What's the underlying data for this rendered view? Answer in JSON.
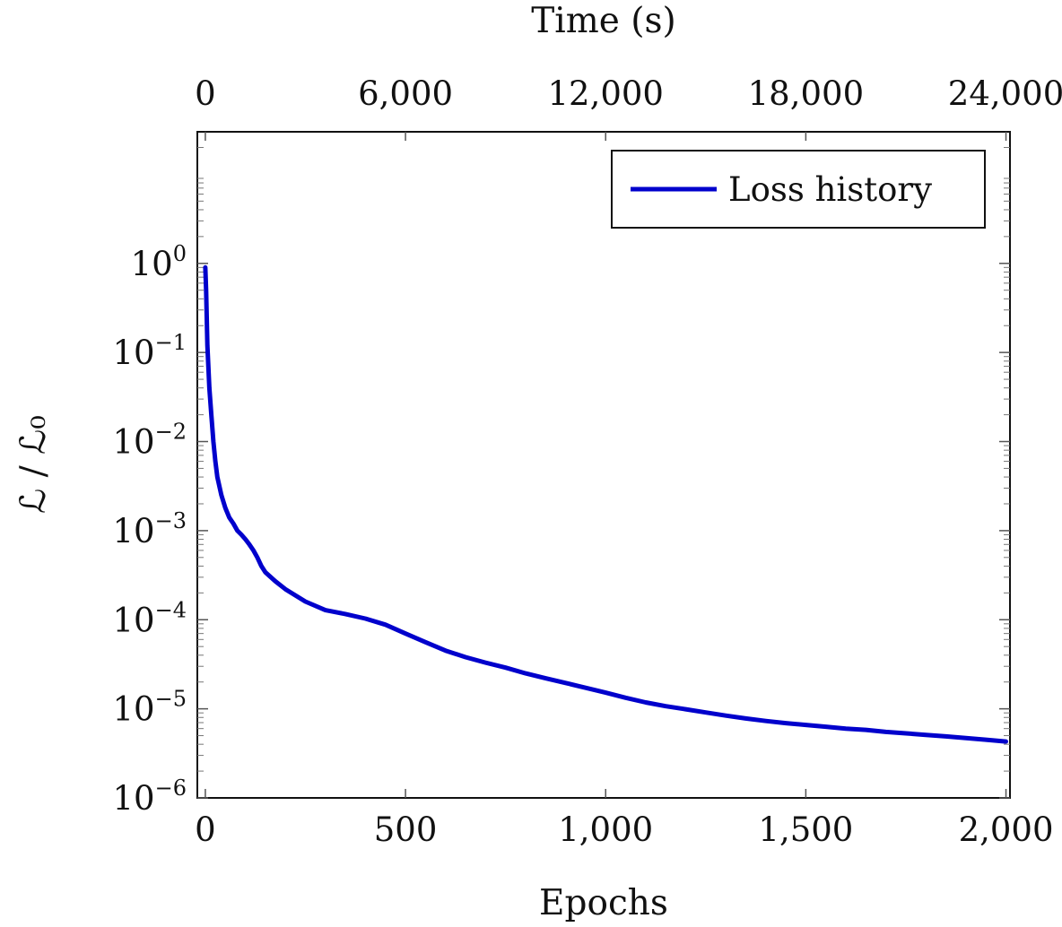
{
  "chart_data": {
    "type": "line",
    "xlabel": "Epochs",
    "x2label": "Time (s)",
    "ylabel": "ℒ / ℒ₀",
    "yscale": "log",
    "xlim": [
      -20,
      2010
    ],
    "ylim": [
      1e-06,
      30
    ],
    "x_ticks": [
      "0",
      "500",
      "1,000",
      "1,500",
      "2,000"
    ],
    "x2_ticks": [
      "0",
      "6,000",
      "12,000",
      "18,000",
      "24,000"
    ],
    "y_ticks": [
      {
        "base": "10",
        "exp": "0"
      },
      {
        "base": "10",
        "exp": "−1"
      },
      {
        "base": "10",
        "exp": "−2"
      },
      {
        "base": "10",
        "exp": "−3"
      },
      {
        "base": "10",
        "exp": "−4"
      },
      {
        "base": "10",
        "exp": "−5"
      },
      {
        "base": "10",
        "exp": "−6"
      }
    ],
    "legend": {
      "position": "top-right",
      "entries": [
        "Loss history"
      ]
    },
    "grid": false,
    "series": [
      {
        "name": "Loss history",
        "color": "#0000cc",
        "x": [
          0,
          2,
          5,
          10,
          15,
          20,
          25,
          30,
          40,
          50,
          60,
          70,
          80,
          90,
          100,
          110,
          120,
          130,
          140,
          150,
          175,
          200,
          250,
          300,
          350,
          400,
          450,
          500,
          550,
          600,
          650,
          700,
          750,
          800,
          850,
          900,
          950,
          1000,
          1050,
          1100,
          1150,
          1200,
          1250,
          1300,
          1350,
          1400,
          1450,
          1500,
          1550,
          1600,
          1650,
          1700,
          1750,
          1800,
          1850,
          1900,
          1950,
          2000
        ],
        "y": [
          0.9,
          0.5,
          0.12,
          0.04,
          0.02,
          0.01,
          0.006,
          0.004,
          0.0025,
          0.0018,
          0.0014,
          0.0012,
          0.001,
          0.0009,
          0.0008,
          0.0007,
          0.0006,
          0.0005,
          0.0004,
          0.00034,
          0.00027,
          0.00022,
          0.00016,
          0.000128,
          0.000116,
          0.000103,
          8.8e-05,
          7e-05,
          5.6e-05,
          4.5e-05,
          3.8e-05,
          3.3e-05,
          2.9e-05,
          2.5e-05,
          2.2e-05,
          1.95e-05,
          1.72e-05,
          1.52e-05,
          1.33e-05,
          1.18e-05,
          1.07e-05,
          9.9e-06,
          9.1e-06,
          8.4e-06,
          7.8e-06,
          7.3e-06,
          6.9e-06,
          6.6e-06,
          6.3e-06,
          6e-06,
          5.8e-06,
          5.5e-06,
          5.3e-06,
          5.1e-06,
          4.9e-06,
          4.7e-06,
          4.5e-06,
          4.3e-06
        ]
      }
    ]
  }
}
